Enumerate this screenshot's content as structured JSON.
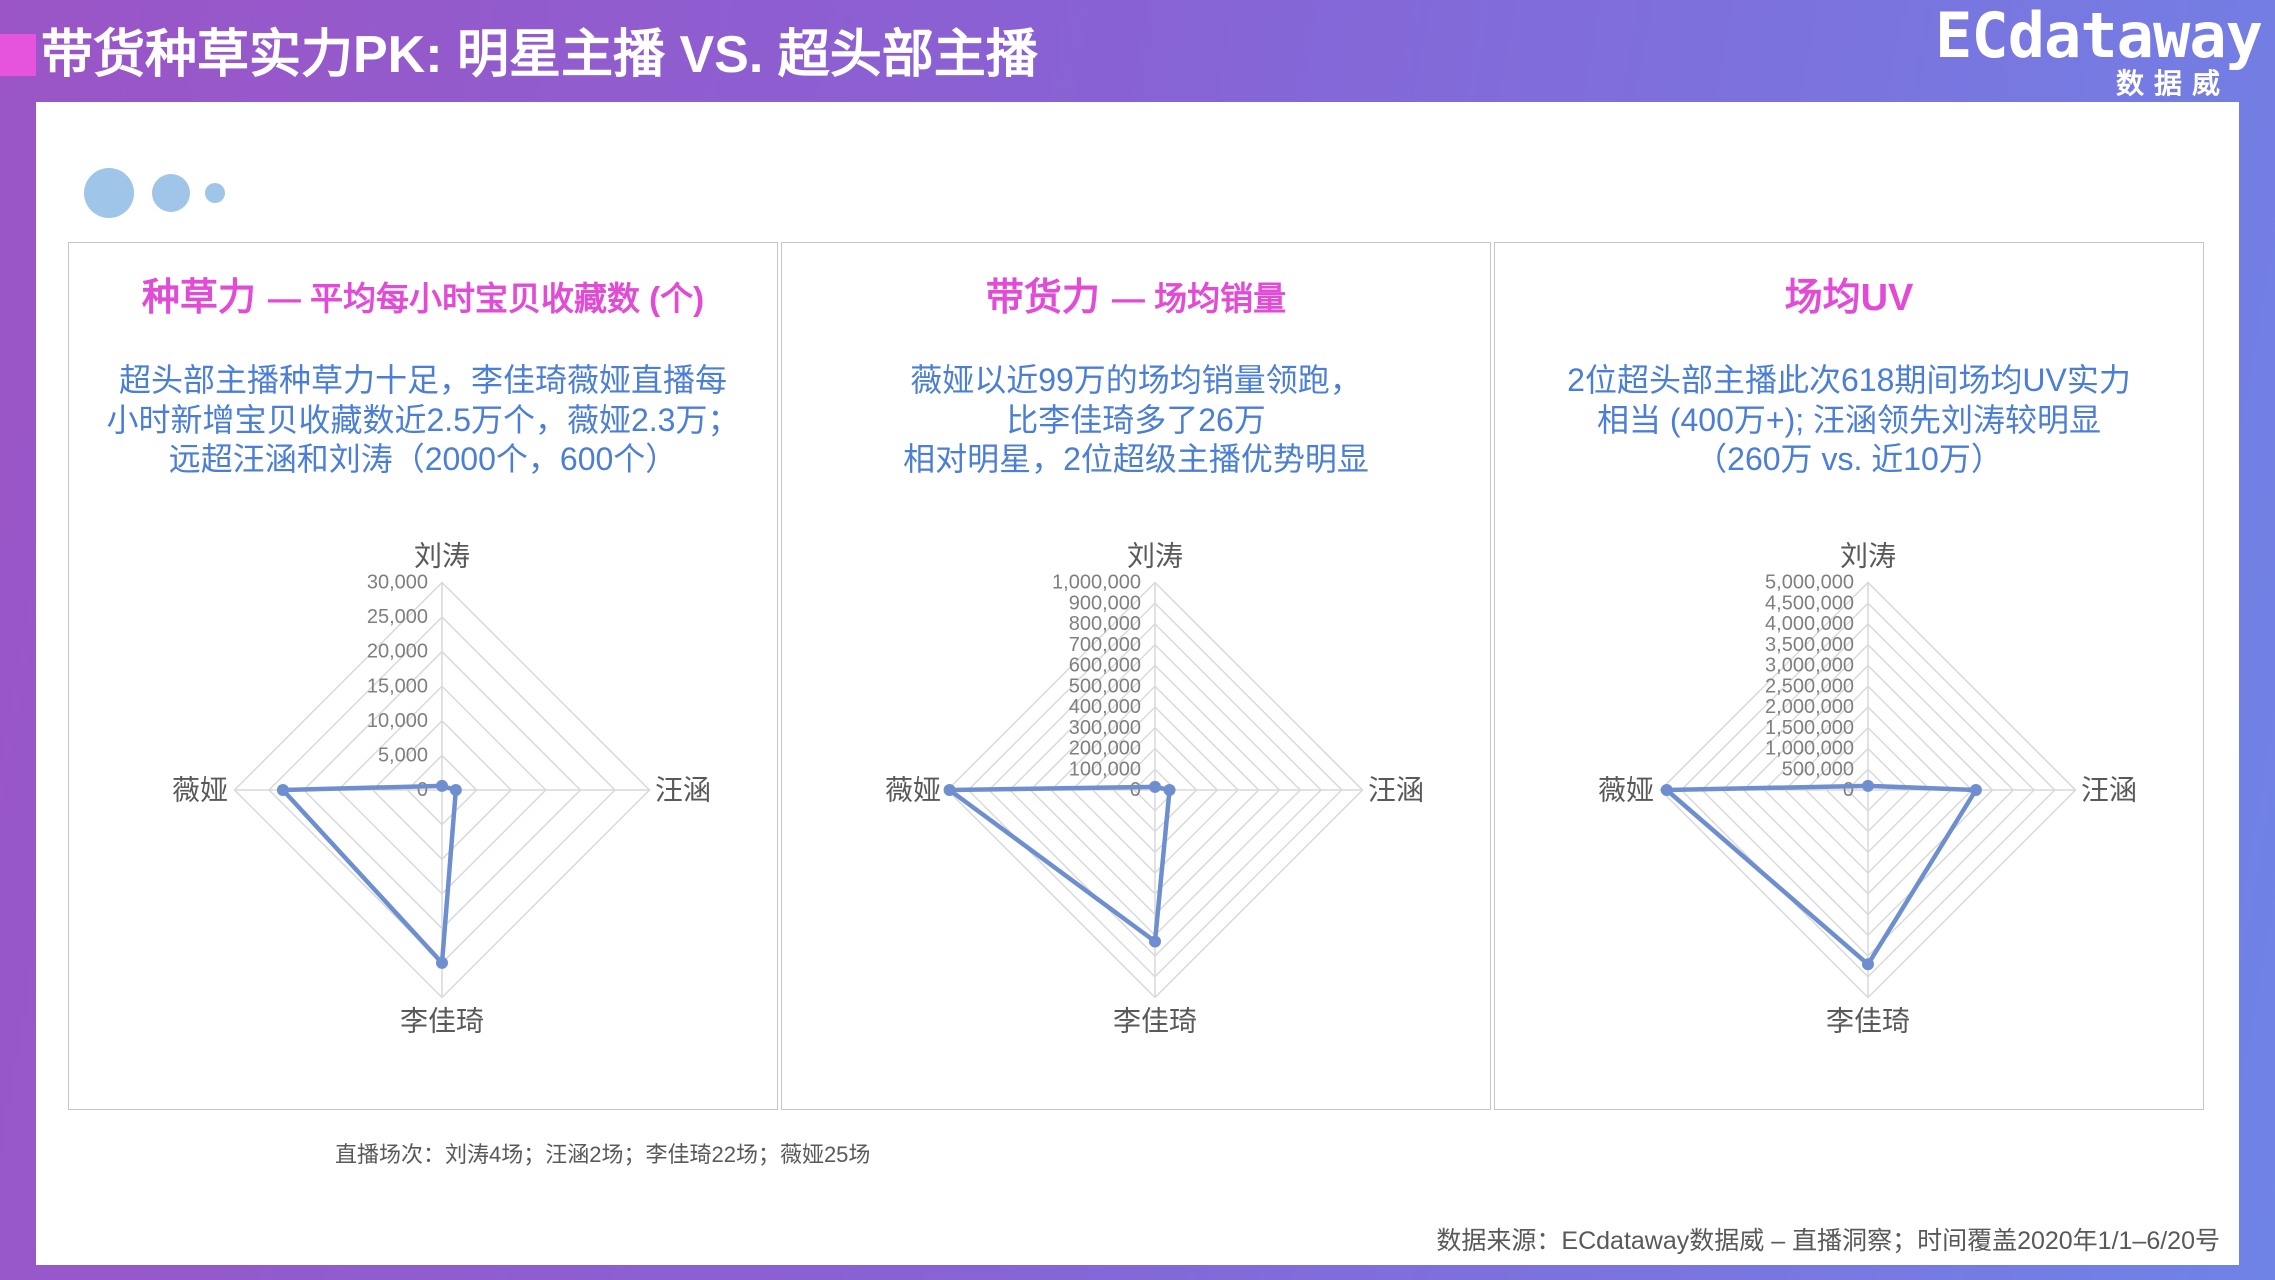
{
  "header": {
    "title": "带货种草实力PK: 明星主播 VS. 超头部主播",
    "logo_text": "ECdataway",
    "logo_sub": "数据威"
  },
  "colors": {
    "title_accent": "#e14bd6",
    "description_blue": "#4b7ed5",
    "series": "#6e8fcf",
    "dots": "#9fc5e8",
    "header_bar": "#e654de"
  },
  "chart_data": [
    {
      "type": "radar",
      "title": "种草力",
      "subtitle": "— 平均每小时宝贝收藏数 (个)",
      "annotation": [
        "超头部主播种草力十足，李佳琦薇娅直播每",
        "小时新增宝贝收藏数近2.5万个，薇娅2.3万；",
        "远超汪涵和刘涛（2000个，600个）"
      ],
      "categories": [
        "刘涛",
        "汪涵",
        "李佳琦",
        "薇娅"
      ],
      "values": [
        600,
        2000,
        25000,
        23000
      ],
      "rlim": [
        0,
        30000
      ],
      "ticks": [
        0,
        5000,
        10000,
        15000,
        20000,
        25000,
        30000
      ],
      "tick_labels": [
        "0",
        "5,000",
        "10,000",
        "15,000",
        "20,000",
        "25,000",
        "30,000"
      ],
      "grid": true
    },
    {
      "type": "radar",
      "title": "带货力",
      "subtitle": "— 场均销量",
      "annotation": [
        "薇娅以近99万的场均销量领跑，",
        "比李佳琦多了26万",
        "相对明星，2位超级主播优势明显"
      ],
      "categories": [
        "刘涛",
        "汪涵",
        "李佳琦",
        "薇娅"
      ],
      "values": [
        15000,
        70000,
        730000,
        990000
      ],
      "rlim": [
        0,
        1000000
      ],
      "ticks": [
        0,
        100000,
        200000,
        300000,
        400000,
        500000,
        600000,
        700000,
        800000,
        900000,
        1000000
      ],
      "tick_labels": [
        "0",
        "100,000",
        "200,000",
        "300,000",
        "400,000",
        "500,000",
        "600,000",
        "700,000",
        "800,000",
        "900,000",
        "1,000,000"
      ],
      "grid": true
    },
    {
      "type": "radar",
      "title": "场均UV",
      "annotation": [
        "2位超头部主播此次618期间场均UV实力",
        "相当 (400万+); 汪涵领先刘涛较明显",
        "（260万 vs. 近10万）"
      ],
      "categories": [
        "刘涛",
        "汪涵",
        "李佳琦",
        "薇娅"
      ],
      "values": [
        100000,
        2600000,
        4200000,
        4850000
      ],
      "rlim": [
        0,
        5000000
      ],
      "ticks": [
        0,
        500000,
        1000000,
        1500000,
        2000000,
        2500000,
        3000000,
        3500000,
        4000000,
        4500000,
        5000000
      ],
      "tick_labels": [
        "0",
        "500,000",
        "1,000,000",
        "1,500,000",
        "2,000,000",
        "2,500,000",
        "3,000,000",
        "3,500,000",
        "4,000,000",
        "4,500,000",
        "5,000,000"
      ],
      "grid": true
    }
  ],
  "footnote": "直播场次：刘涛4场；汪涵2场；李佳琦22场；薇娅25场",
  "source": "数据来源：ECdataway数据威 – 直播洞察；时间覆盖2020年1/1–6/20号"
}
